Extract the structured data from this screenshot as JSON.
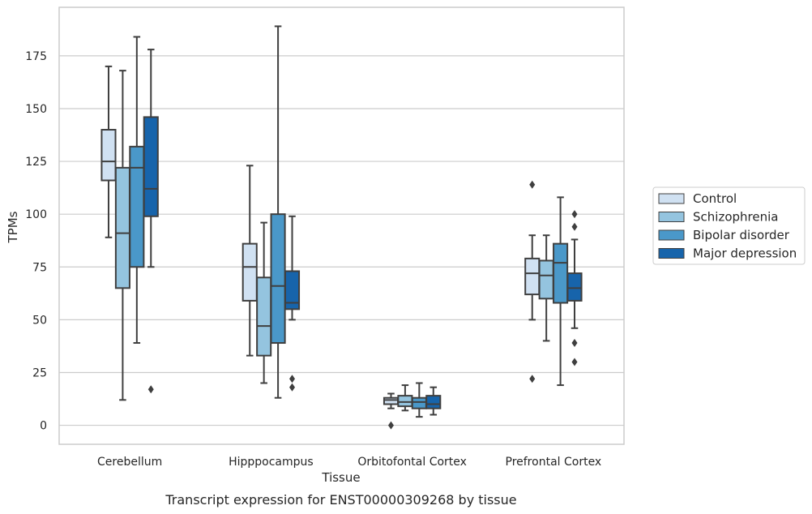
{
  "chart_data": {
    "type": "box",
    "caption": "Transcript expression for ENST00000309268 by tissue",
    "xlabel": "Tissue",
    "ylabel": "TPMs",
    "ylim": [
      -9,
      198
    ],
    "yticks": [
      0,
      25,
      50,
      75,
      100,
      125,
      150,
      175
    ],
    "grid": "horizontal",
    "legend_position": "right",
    "categories": [
      "Cerebellum",
      "Hipppocampus",
      "Orbitofontal Cortex",
      "Prefrontal Cortex"
    ],
    "series": [
      {
        "name": "Control",
        "color": "#d0e1f2",
        "boxes": [
          {
            "whisker_low": 89,
            "q1": 116,
            "median": 125,
            "q3": 140,
            "whisker_high": 170,
            "outliers": []
          },
          {
            "whisker_low": 33,
            "q1": 59,
            "median": 75,
            "q3": 86,
            "whisker_high": 123,
            "outliers": []
          },
          {
            "whisker_low": 8,
            "q1": 10,
            "median": 12,
            "q3": 13,
            "whisker_high": 15,
            "outliers": [
              0
            ]
          },
          {
            "whisker_low": 50,
            "q1": 62,
            "median": 72,
            "q3": 79,
            "whisker_high": 90,
            "outliers": [
              114,
              22
            ]
          }
        ]
      },
      {
        "name": "Schizophrenia",
        "color": "#94c4df",
        "boxes": [
          {
            "whisker_low": 12,
            "q1": 65,
            "median": 91,
            "q3": 122,
            "whisker_high": 168,
            "outliers": []
          },
          {
            "whisker_low": 20,
            "q1": 33,
            "median": 47,
            "q3": 70,
            "whisker_high": 96,
            "outliers": []
          },
          {
            "whisker_low": 7,
            "q1": 9,
            "median": 11,
            "q3": 14,
            "whisker_high": 19,
            "outliers": []
          },
          {
            "whisker_low": 40,
            "q1": 60,
            "median": 71,
            "q3": 78,
            "whisker_high": 90,
            "outliers": []
          }
        ]
      },
      {
        "name": "Bipolar disorder",
        "color": "#4a98c9",
        "boxes": [
          {
            "whisker_low": 39,
            "q1": 75,
            "median": 122,
            "q3": 132,
            "whisker_high": 184,
            "outliers": []
          },
          {
            "whisker_low": 13,
            "q1": 39,
            "median": 66,
            "q3": 100,
            "whisker_high": 189,
            "outliers": []
          },
          {
            "whisker_low": 4,
            "q1": 8,
            "median": 11,
            "q3": 13,
            "whisker_high": 20,
            "outliers": []
          },
          {
            "whisker_low": 19,
            "q1": 58,
            "median": 77,
            "q3": 86,
            "whisker_high": 108,
            "outliers": []
          }
        ]
      },
      {
        "name": "Major depression",
        "color": "#1764ab",
        "boxes": [
          {
            "whisker_low": 75,
            "q1": 99,
            "median": 112,
            "q3": 146,
            "whisker_high": 178,
            "outliers": [
              17
            ]
          },
          {
            "whisker_low": 50,
            "q1": 55,
            "median": 58,
            "q3": 73,
            "whisker_high": 99,
            "outliers": [
              22,
              18
            ]
          },
          {
            "whisker_low": 5,
            "q1": 8,
            "median": 10,
            "q3": 14,
            "whisker_high": 18,
            "outliers": []
          },
          {
            "whisker_low": 46,
            "q1": 59,
            "median": 65,
            "q3": 72,
            "whisker_high": 88,
            "outliers": [
              100,
              94,
              39,
              30
            ]
          }
        ]
      }
    ]
  }
}
